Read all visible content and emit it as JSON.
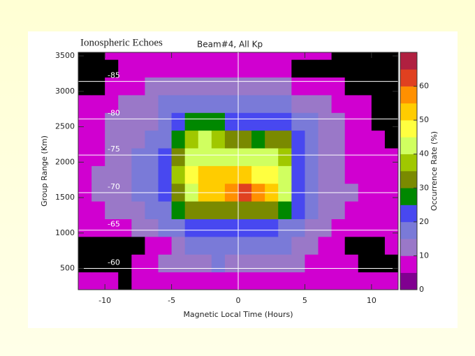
{
  "chart_data": {
    "type": "heatmap",
    "title": "Ionospheric Echoes",
    "subtitle": "Beam#4, All Kp",
    "x_label": "Magnetic Local Time (Hours)",
    "y_label": "Group Range (Km)",
    "colorbar_label": "Occurrence Rate (%)",
    "xlim": [
      -12,
      12
    ],
    "xticks": [
      -10,
      -5,
      0,
      5,
      10
    ],
    "ylim": [
      200,
      3550
    ],
    "yticks": [
      500,
      1000,
      1500,
      2000,
      2500,
      3000,
      3500
    ],
    "x_edges": [
      -12,
      -11,
      -10,
      -9,
      -8,
      -7,
      -6,
      -5,
      -4,
      -3,
      -2,
      -1,
      0,
      1,
      2,
      3,
      4,
      5,
      6,
      7,
      8,
      9,
      10,
      11,
      12
    ],
    "y_edges": [
      200,
      450,
      700,
      950,
      1200,
      1450,
      1700,
      1950,
      2200,
      2450,
      2700,
      2950,
      3200,
      3450,
      3550
    ],
    "rows": [
      [
        6,
        7,
        6,
        null,
        5,
        6,
        8,
        8,
        9,
        9,
        8,
        8,
        9,
        8,
        8,
        7,
        7,
        7,
        6,
        6,
        6,
        6,
        5,
        6
      ],
      [
        null,
        null,
        null,
        null,
        6,
        8,
        11,
        13,
        14,
        14,
        15,
        14,
        14,
        13,
        14,
        12,
        11,
        9,
        8,
        7,
        6,
        null,
        null,
        null
      ],
      [
        null,
        null,
        null,
        null,
        null,
        6,
        9,
        14,
        17,
        18,
        18,
        19,
        18,
        17,
        16,
        15,
        13,
        10,
        8,
        6,
        null,
        null,
        null,
        6
      ],
      [
        7,
        6,
        8,
        9,
        11,
        13,
        15,
        18,
        21,
        22,
        22,
        21,
        22,
        21,
        20,
        18,
        15,
        13,
        10,
        8,
        7,
        6,
        7,
        6
      ],
      [
        8,
        9,
        11,
        12,
        14,
        16,
        19,
        26,
        32,
        34,
        33,
        33,
        32,
        31,
        30,
        28,
        21,
        16,
        13,
        11,
        9,
        8,
        7,
        7
      ],
      [
        8,
        10,
        12,
        14,
        15,
        17,
        20,
        33,
        44,
        50,
        54,
        58,
        60,
        57,
        52,
        44,
        22,
        17,
        14,
        12,
        10,
        9,
        8,
        8
      ],
      [
        8,
        10,
        12,
        14,
        16,
        18,
        21,
        36,
        48,
        52,
        54,
        53,
        51,
        48,
        46,
        42,
        22,
        17,
        14,
        11,
        9,
        8,
        8,
        8
      ],
      [
        7,
        9,
        11,
        13,
        15,
        17,
        20,
        34,
        42,
        44,
        44,
        42,
        40,
        41,
        42,
        38,
        21,
        17,
        14,
        11,
        9,
        7,
        7,
        7
      ],
      [
        7,
        8,
        10,
        12,
        14,
        16,
        19,
        28,
        36,
        40,
        38,
        34,
        31,
        27,
        33,
        32,
        20,
        16,
        13,
        10,
        8,
        7,
        6,
        null
      ],
      [
        8,
        9,
        10,
        11,
        12,
        14,
        17,
        20,
        26,
        28,
        27,
        24,
        22,
        21,
        22,
        20,
        18,
        15,
        12,
        10,
        8,
        7,
        null,
        null
      ],
      [
        7,
        8,
        9,
        10,
        11,
        13,
        15,
        16,
        17,
        18,
        18,
        17,
        16,
        16,
        16,
        15,
        14,
        12,
        10,
        9,
        7,
        6,
        null,
        null
      ],
      [
        null,
        null,
        6,
        7,
        8,
        10,
        11,
        12,
        12,
        12,
        12,
        11,
        11,
        11,
        10,
        10,
        9,
        8,
        7,
        6,
        null,
        null,
        null,
        null
      ],
      [
        null,
        null,
        null,
        5,
        6,
        6,
        7,
        7,
        7,
        6,
        7,
        7,
        7,
        6,
        6,
        5,
        null,
        null,
        null,
        null,
        null,
        null,
        null,
        null
      ],
      [
        null,
        null,
        6,
        7,
        8,
        8,
        8,
        7,
        7,
        7,
        8,
        8,
        7,
        7,
        7,
        6,
        6,
        6,
        5,
        null,
        null,
        null,
        null,
        null
      ]
    ],
    "nodata_color": "#000000",
    "clim": [
      0,
      70
    ],
    "levels": [
      0,
      5,
      10,
      15,
      20,
      25,
      30,
      35,
      40,
      45,
      50,
      55,
      60,
      65,
      70
    ],
    "colors": [
      "#800090",
      "#d000d0",
      "#9a78c8",
      "#7a7ad8",
      "#4848f0",
      "#008800",
      "#7a8a00",
      "#a0c800",
      "#d0ff60",
      "#ffff40",
      "#ffcc00",
      "#ff9000",
      "#e04020",
      "#b02040"
    ],
    "cticks": [
      0,
      10,
      20,
      30,
      40,
      50,
      60
    ],
    "latitude_lines": [
      {
        "latitude": -85,
        "range": 3140
      },
      {
        "latitude": -80,
        "range": 2610
      },
      {
        "latitude": -75,
        "range": 2100
      },
      {
        "latitude": -70,
        "range": 1570
      },
      {
        "latitude": -65,
        "range": 1040
      },
      {
        "latitude": -60,
        "range": 500
      }
    ]
  }
}
